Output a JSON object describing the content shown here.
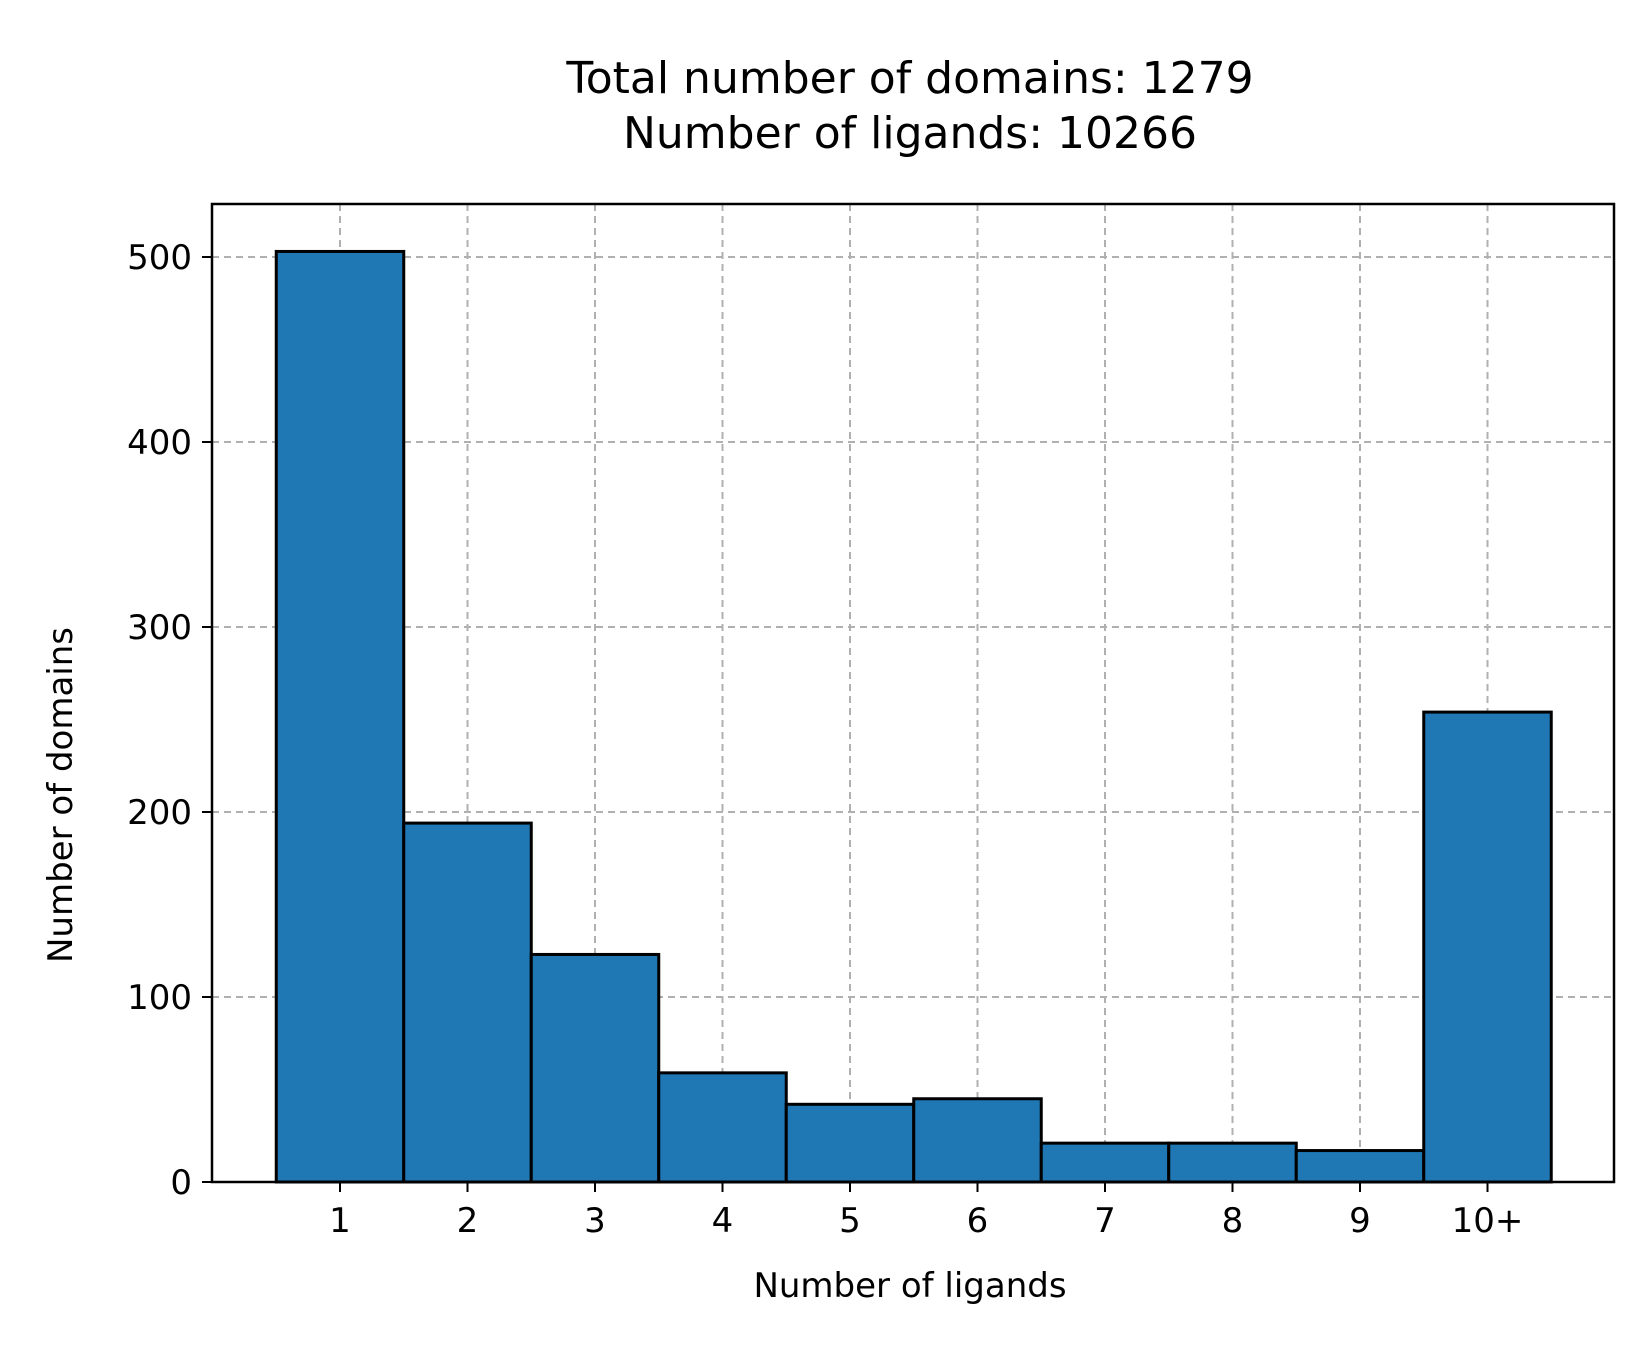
{
  "chart_data": {
    "type": "bar",
    "title_lines": [
      "Total number of domains: 1279",
      "Number of ligands: 10266"
    ],
    "xlabel": "Number of ligands",
    "ylabel": "Number of domains",
    "categories": [
      "1",
      "2",
      "3",
      "4",
      "5",
      "6",
      "7",
      "8",
      "9",
      "10+"
    ],
    "values": [
      503,
      194,
      123,
      59,
      42,
      45,
      21,
      21,
      17,
      254
    ],
    "ylim": [
      0,
      500
    ],
    "yticks": [
      0,
      100,
      200,
      300,
      400,
      500
    ],
    "grid": true,
    "bar_color": "#1f77b4",
    "edge_color": "#000000",
    "grid_color": "#b0b0b0"
  }
}
